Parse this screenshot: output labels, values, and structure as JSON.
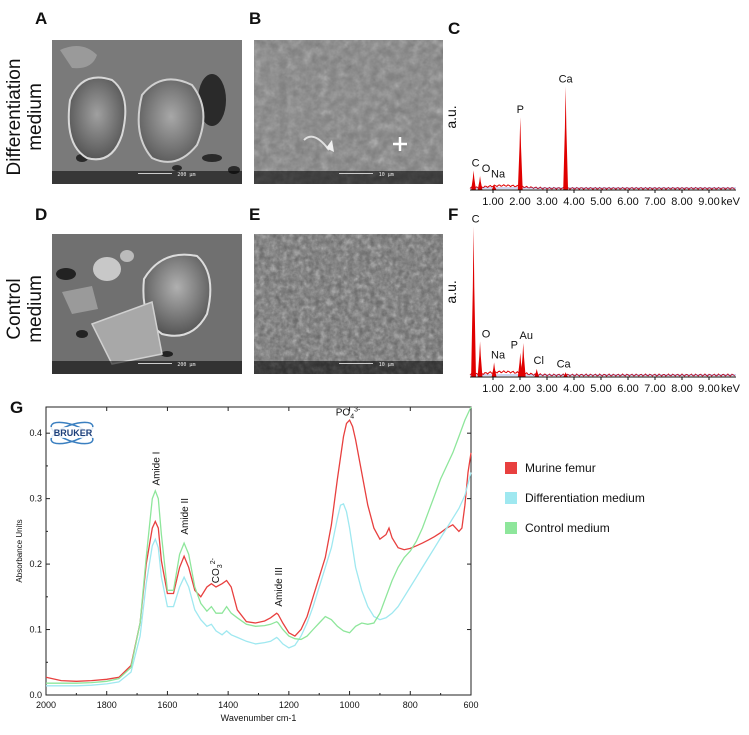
{
  "panels": {
    "A": "A",
    "B": "B",
    "C": "C",
    "D": "D",
    "E": "E",
    "F": "F",
    "G": "G"
  },
  "row_labels": {
    "top": [
      "Differentiation",
      "medium"
    ],
    "bottom": [
      "Control",
      "medium"
    ]
  },
  "sem_images": {
    "A": {
      "scale_text": "200 µm"
    },
    "B": {
      "scale_text": "10 µm"
    },
    "D": {
      "scale_text": "200 µm"
    },
    "E": {
      "scale_text": "10 µm"
    }
  },
  "chart_data": [
    {
      "id": "C",
      "type": "bar",
      "ylabel": "a.u.",
      "xunit": "keV",
      "xlim": [
        0,
        10
      ],
      "xticks": [
        1,
        2,
        3,
        4,
        5,
        6,
        7,
        8,
        9
      ],
      "xtick_labels": [
        "1.00",
        "2.00",
        "3.00",
        "4.00",
        "5.00",
        "6.00",
        "7.00",
        "8.00",
        "9.00"
      ],
      "peaks": [
        {
          "label": "C",
          "x": 0.28,
          "y": 0.14
        },
        {
          "label": "O",
          "x": 0.52,
          "y": 0.1
        },
        {
          "label": "Na",
          "x": 1.04,
          "y": 0.04
        },
        {
          "label": "P",
          "x": 2.01,
          "y": 0.52
        },
        {
          "label": "Ca",
          "x": 3.69,
          "y": 0.74
        }
      ],
      "color": "#e00000"
    },
    {
      "id": "F",
      "type": "bar",
      "ylabel": "a.u.",
      "xunit": "keV",
      "xlim": [
        0,
        10
      ],
      "xticks": [
        1,
        2,
        3,
        4,
        5,
        6,
        7,
        8,
        9
      ],
      "xtick_labels": [
        "1.00",
        "2.00",
        "3.00",
        "4.00",
        "5.00",
        "6.00",
        "7.00",
        "8.00",
        "9.00"
      ],
      "peaks": [
        {
          "label": "C",
          "x": 0.28,
          "y": 0.93
        },
        {
          "label": "O",
          "x": 0.52,
          "y": 0.22
        },
        {
          "label": "Na",
          "x": 1.04,
          "y": 0.09
        },
        {
          "label": "P",
          "x": 2.01,
          "y": 0.15
        },
        {
          "label": "Au",
          "x": 2.12,
          "y": 0.21
        },
        {
          "label": "Cl",
          "x": 2.62,
          "y": 0.05
        },
        {
          "label": "Ca",
          "x": 3.69,
          "y": 0.03
        }
      ],
      "color": "#e00000"
    },
    {
      "id": "G",
      "type": "line",
      "xlabel": "Wavenumber cm-1",
      "ylabel": "Absorbance Units",
      "xlim": [
        2000,
        600
      ],
      "ylim": [
        0,
        0.44
      ],
      "xticks": [
        2000,
        1800,
        1600,
        1400,
        1200,
        1000,
        800,
        600
      ],
      "yticks": [
        0.0,
        0.1,
        0.2,
        0.3,
        0.4
      ],
      "ytick_labels": [
        "0.0",
        "0.1",
        "0.2",
        "0.3",
        "0.4"
      ],
      "logo_text": "BRUKER",
      "annotations": [
        {
          "text": "Amide I",
          "x": 1640,
          "y": 0.32
        },
        {
          "text": "Amide II",
          "x": 1545,
          "y": 0.245
        },
        {
          "text": "CO3",
          "sub": "2-",
          "x": 1450,
          "y": 0.19
        },
        {
          "text": "Amide III",
          "x": 1235,
          "y": 0.135
        },
        {
          "text": "PO4",
          "sub": "3-",
          "x": 1005,
          "y": 0.43
        }
      ],
      "series": [
        {
          "name": "Murine femur",
          "color": "#e8403f",
          "x": [
            2000,
            1950,
            1900,
            1850,
            1800,
            1760,
            1720,
            1690,
            1670,
            1650,
            1640,
            1630,
            1620,
            1600,
            1580,
            1560,
            1545,
            1530,
            1510,
            1490,
            1470,
            1455,
            1440,
            1420,
            1405,
            1390,
            1370,
            1340,
            1310,
            1280,
            1260,
            1240,
            1235,
            1220,
            1200,
            1180,
            1160,
            1140,
            1120,
            1100,
            1080,
            1060,
            1040,
            1020,
            1010,
            1000,
            990,
            980,
            960,
            940,
            920,
            900,
            880,
            870,
            860,
            840,
            820,
            800,
            780,
            760,
            740,
            720,
            700,
            680,
            660,
            650,
            640,
            630,
            620,
            610,
            600
          ],
          "y": [
            0.027,
            0.022,
            0.021,
            0.022,
            0.024,
            0.027,
            0.045,
            0.11,
            0.2,
            0.255,
            0.265,
            0.255,
            0.205,
            0.155,
            0.155,
            0.195,
            0.212,
            0.195,
            0.16,
            0.15,
            0.165,
            0.17,
            0.165,
            0.17,
            0.175,
            0.165,
            0.13,
            0.112,
            0.11,
            0.113,
            0.118,
            0.125,
            0.123,
            0.11,
            0.095,
            0.09,
            0.1,
            0.12,
            0.15,
            0.18,
            0.21,
            0.26,
            0.33,
            0.395,
            0.415,
            0.42,
            0.41,
            0.39,
            0.34,
            0.29,
            0.255,
            0.238,
            0.245,
            0.255,
            0.24,
            0.225,
            0.222,
            0.224,
            0.228,
            0.232,
            0.237,
            0.242,
            0.248,
            0.255,
            0.26,
            0.255,
            0.25,
            0.255,
            0.29,
            0.34,
            0.37
          ]
        },
        {
          "name": "Differentiation medium",
          "color": "#9fe8f0",
          "x": [
            2000,
            1950,
            1900,
            1850,
            1800,
            1760,
            1720,
            1690,
            1670,
            1650,
            1640,
            1630,
            1620,
            1600,
            1580,
            1560,
            1545,
            1530,
            1510,
            1490,
            1470,
            1455,
            1440,
            1420,
            1405,
            1390,
            1370,
            1340,
            1310,
            1280,
            1260,
            1240,
            1235,
            1220,
            1200,
            1180,
            1160,
            1140,
            1120,
            1100,
            1080,
            1060,
            1040,
            1030,
            1020,
            1010,
            1000,
            990,
            980,
            960,
            940,
            920,
            900,
            880,
            860,
            840,
            820,
            800,
            780,
            760,
            740,
            720,
            700,
            680,
            660,
            640,
            620,
            600
          ],
          "y": [
            0.014,
            0.014,
            0.014,
            0.015,
            0.017,
            0.02,
            0.035,
            0.09,
            0.17,
            0.228,
            0.238,
            0.225,
            0.18,
            0.135,
            0.135,
            0.165,
            0.18,
            0.165,
            0.13,
            0.115,
            0.105,
            0.108,
            0.098,
            0.092,
            0.098,
            0.092,
            0.088,
            0.082,
            0.078,
            0.08,
            0.082,
            0.088,
            0.086,
            0.078,
            0.072,
            0.076,
            0.09,
            0.11,
            0.135,
            0.165,
            0.195,
            0.225,
            0.27,
            0.29,
            0.292,
            0.28,
            0.255,
            0.225,
            0.195,
            0.16,
            0.135,
            0.12,
            0.115,
            0.118,
            0.125,
            0.135,
            0.15,
            0.165,
            0.18,
            0.195,
            0.21,
            0.225,
            0.24,
            0.255,
            0.27,
            0.285,
            0.305,
            0.34
          ]
        },
        {
          "name": "Control medium",
          "color": "#8ee69b",
          "x": [
            2000,
            1950,
            1900,
            1850,
            1800,
            1760,
            1720,
            1690,
            1670,
            1650,
            1640,
            1630,
            1620,
            1600,
            1580,
            1560,
            1545,
            1530,
            1510,
            1490,
            1470,
            1455,
            1440,
            1420,
            1405,
            1390,
            1370,
            1340,
            1310,
            1280,
            1260,
            1240,
            1235,
            1220,
            1200,
            1180,
            1160,
            1140,
            1120,
            1100,
            1080,
            1060,
            1040,
            1020,
            1000,
            980,
            960,
            940,
            920,
            900,
            880,
            860,
            840,
            820,
            800,
            780,
            760,
            740,
            720,
            700,
            680,
            660,
            640,
            620,
            600
          ],
          "y": [
            0.018,
            0.018,
            0.018,
            0.019,
            0.021,
            0.025,
            0.042,
            0.11,
            0.21,
            0.3,
            0.312,
            0.3,
            0.245,
            0.16,
            0.16,
            0.215,
            0.232,
            0.215,
            0.165,
            0.14,
            0.128,
            0.135,
            0.125,
            0.125,
            0.135,
            0.125,
            0.118,
            0.108,
            0.105,
            0.106,
            0.108,
            0.112,
            0.11,
            0.1,
            0.09,
            0.086,
            0.085,
            0.09,
            0.1,
            0.11,
            0.12,
            0.115,
            0.105,
            0.098,
            0.095,
            0.105,
            0.11,
            0.108,
            0.11,
            0.125,
            0.15,
            0.175,
            0.195,
            0.21,
            0.22,
            0.235,
            0.255,
            0.28,
            0.305,
            0.33,
            0.35,
            0.37,
            0.395,
            0.42,
            0.44
          ]
        }
      ],
      "legend": {
        "placement": "right"
      }
    }
  ]
}
